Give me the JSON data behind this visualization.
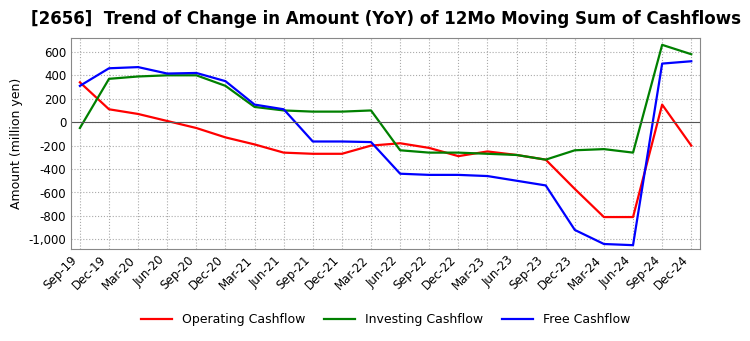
{
  "title": "[2656]  Trend of Change in Amount (YoY) of 12Mo Moving Sum of Cashflows",
  "ylabel": "Amount (million yen)",
  "ylim": [
    -1080,
    720
  ],
  "yticks": [
    -1000,
    -800,
    -600,
    -400,
    -200,
    0,
    200,
    400,
    600
  ],
  "x_labels": [
    "Sep-19",
    "Dec-19",
    "Mar-20",
    "Jun-20",
    "Sep-20",
    "Dec-20",
    "Mar-21",
    "Jun-21",
    "Sep-21",
    "Dec-21",
    "Mar-22",
    "Jun-22",
    "Sep-22",
    "Dec-22",
    "Mar-23",
    "Jun-23",
    "Sep-23",
    "Dec-23",
    "Mar-24",
    "Jun-24",
    "Sep-24",
    "Dec-24"
  ],
  "operating": [
    340,
    110,
    70,
    10,
    -50,
    -130,
    -190,
    -260,
    -270,
    -270,
    -200,
    -180,
    -220,
    -290,
    -250,
    -280,
    -320,
    -570,
    -810,
    -810,
    150,
    -200
  ],
  "investing": [
    -50,
    370,
    390,
    400,
    400,
    310,
    130,
    100,
    90,
    90,
    100,
    -240,
    -260,
    -260,
    -270,
    -280,
    -320,
    -240,
    -230,
    -260,
    660,
    580
  ],
  "free": [
    310,
    460,
    470,
    415,
    420,
    350,
    150,
    110,
    -165,
    -165,
    -170,
    -440,
    -450,
    -450,
    -460,
    -500,
    -540,
    -920,
    -1040,
    -1050,
    500,
    520
  ],
  "op_color": "#ff0000",
  "inv_color": "#008000",
  "free_color": "#0000ff",
  "bg_color": "#ffffff",
  "grid_color": "#aaaaaa",
  "title_fontsize": 12,
  "label_fontsize": 9,
  "tick_fontsize": 8.5
}
